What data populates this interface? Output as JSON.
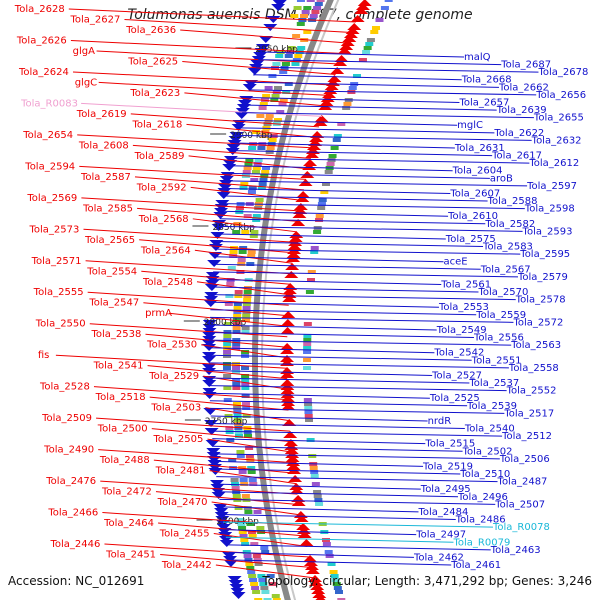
{
  "title": "Tolumonas auensis DSM 9187, complete genome",
  "accession": "Accession: NC_012691",
  "summary": "Topology: circular; Length: 3,471,292 bp; Genes: 3,246",
  "colors": {
    "reverse_strand": "#ee0000",
    "forward_strand": "#1111cc",
    "rna": "#1ab8d8",
    "rna_light": "#f0a0d0",
    "backbone": "#888888"
  },
  "ticks": [
    "2950 kbp",
    "2900 kbp",
    "2850 kbp",
    "2800 kbp",
    "2750 kbp",
    "2700 kbp"
  ],
  "left_labels": [
    {
      "text": "Tola_2628",
      "color": "red"
    },
    {
      "text": "Tola_2627",
      "color": "red"
    },
    {
      "text": "Tola_2636",
      "color": "red"
    },
    {
      "text": "Tola_2626",
      "color": "red"
    },
    {
      "text": "glgA",
      "color": "red"
    },
    {
      "text": "Tola_2625",
      "color": "red"
    },
    {
      "text": "Tola_2624",
      "color": "red"
    },
    {
      "text": "glgC",
      "color": "red"
    },
    {
      "text": "Tola_2623",
      "color": "red"
    },
    {
      "text": "Tola_R0083",
      "color": "pink"
    },
    {
      "text": "Tola_2619",
      "color": "red"
    },
    {
      "text": "Tola_2618",
      "color": "red"
    },
    {
      "text": "Tola_2654",
      "color": "red"
    },
    {
      "text": "Tola_2608",
      "color": "red"
    },
    {
      "text": "Tola_2589",
      "color": "red"
    },
    {
      "text": "Tola_2594",
      "color": "red"
    },
    {
      "text": "Tola_2587",
      "color": "red"
    },
    {
      "text": "Tola_2592",
      "color": "red"
    },
    {
      "text": "Tola_2569",
      "color": "red"
    },
    {
      "text": "Tola_2585",
      "color": "red"
    },
    {
      "text": "Tola_2568",
      "color": "red"
    },
    {
      "text": "Tola_2573",
      "color": "red"
    },
    {
      "text": "Tola_2565",
      "color": "red"
    },
    {
      "text": "Tola_2564",
      "color": "red"
    },
    {
      "text": "Tola_2571",
      "color": "red"
    },
    {
      "text": "Tola_2554",
      "color": "red"
    },
    {
      "text": "Tola_2548",
      "color": "red"
    },
    {
      "text": "Tola_2555",
      "color": "red"
    },
    {
      "text": "Tola_2547",
      "color": "red"
    },
    {
      "text": "prmA",
      "color": "red"
    },
    {
      "text": "Tola_2550",
      "color": "red"
    },
    {
      "text": "Tola_2538",
      "color": "red"
    },
    {
      "text": "Tola_2530",
      "color": "red"
    },
    {
      "text": "fis",
      "color": "red"
    },
    {
      "text": "Tola_2541",
      "color": "red"
    },
    {
      "text": "Tola_2529",
      "color": "red"
    },
    {
      "text": "Tola_2528",
      "color": "red"
    },
    {
      "text": "Tola_2518",
      "color": "red"
    },
    {
      "text": "Tola_2503",
      "color": "red"
    },
    {
      "text": "Tola_2509",
      "color": "red"
    },
    {
      "text": "Tola_2500",
      "color": "red"
    },
    {
      "text": "Tola_2505",
      "color": "red"
    },
    {
      "text": "Tola_2490",
      "color": "red"
    },
    {
      "text": "Tola_2488",
      "color": "red"
    },
    {
      "text": "Tola_2481",
      "color": "red"
    },
    {
      "text": "Tola_2476",
      "color": "red"
    },
    {
      "text": "Tola_2472",
      "color": "red"
    },
    {
      "text": "Tola_2470",
      "color": "red"
    },
    {
      "text": "Tola_2466",
      "color": "red"
    },
    {
      "text": "Tola_2464",
      "color": "red"
    },
    {
      "text": "Tola_2455",
      "color": "red"
    },
    {
      "text": "Tola_2446",
      "color": "red"
    },
    {
      "text": "Tola_2451",
      "color": "red"
    },
    {
      "text": "Tola_2442",
      "color": "red"
    }
  ],
  "right_labels": [
    {
      "text": "malQ",
      "color": "blue"
    },
    {
      "text": "Tola_2687",
      "color": "blue"
    },
    {
      "text": "Tola_2678",
      "color": "blue"
    },
    {
      "text": "Tola_2668",
      "color": "blue"
    },
    {
      "text": "Tola_2662",
      "color": "blue"
    },
    {
      "text": "Tola_2656",
      "color": "blue"
    },
    {
      "text": "Tola_2657",
      "color": "blue"
    },
    {
      "text": "Tola_2639",
      "color": "blue"
    },
    {
      "text": "Tola_2655",
      "color": "blue"
    },
    {
      "text": "mglC",
      "color": "blue"
    },
    {
      "text": "Tola_2622",
      "color": "blue"
    },
    {
      "text": "Tola_2632",
      "color": "blue"
    },
    {
      "text": "Tola_2631",
      "color": "blue"
    },
    {
      "text": "Tola_2617",
      "color": "blue"
    },
    {
      "text": "Tola_2612",
      "color": "blue"
    },
    {
      "text": "Tola_2604",
      "color": "blue"
    },
    {
      "text": "aroB",
      "color": "blue"
    },
    {
      "text": "Tola_2597",
      "color": "blue"
    },
    {
      "text": "Tola_2607",
      "color": "blue"
    },
    {
      "text": "Tola_2588",
      "color": "blue"
    },
    {
      "text": "Tola_2598",
      "color": "blue"
    },
    {
      "text": "Tola_2610",
      "color": "blue"
    },
    {
      "text": "Tola_2582",
      "color": "blue"
    },
    {
      "text": "Tola_2593",
      "color": "blue"
    },
    {
      "text": "Tola_2575",
      "color": "blue"
    },
    {
      "text": "Tola_2583",
      "color": "blue"
    },
    {
      "text": "Tola_2595",
      "color": "blue"
    },
    {
      "text": "aceE",
      "color": "blue"
    },
    {
      "text": "Tola_2567",
      "color": "blue"
    },
    {
      "text": "Tola_2579",
      "color": "blue"
    },
    {
      "text": "Tola_2561",
      "color": "blue"
    },
    {
      "text": "Tola_2570",
      "color": "blue"
    },
    {
      "text": "Tola_2578",
      "color": "blue"
    },
    {
      "text": "Tola_2553",
      "color": "blue"
    },
    {
      "text": "Tola_2559",
      "color": "blue"
    },
    {
      "text": "Tola_2572",
      "color": "blue"
    },
    {
      "text": "Tola_2549",
      "color": "blue"
    },
    {
      "text": "Tola_2556",
      "color": "blue"
    },
    {
      "text": "Tola_2563",
      "color": "blue"
    },
    {
      "text": "Tola_2542",
      "color": "blue"
    },
    {
      "text": "Tola_2551",
      "color": "blue"
    },
    {
      "text": "Tola_2558",
      "color": "blue"
    },
    {
      "text": "Tola_2527",
      "color": "blue"
    },
    {
      "text": "Tola_2537",
      "color": "blue"
    },
    {
      "text": "Tola_2552",
      "color": "blue"
    },
    {
      "text": "Tola_2525",
      "color": "blue"
    },
    {
      "text": "Tola_2539",
      "color": "blue"
    },
    {
      "text": "Tola_2517",
      "color": "blue"
    },
    {
      "text": "nrdR",
      "color": "blue"
    },
    {
      "text": "Tola_2540",
      "color": "blue"
    },
    {
      "text": "Tola_2512",
      "color": "blue"
    },
    {
      "text": "Tola_2515",
      "color": "blue"
    },
    {
      "text": "Tola_2502",
      "color": "blue"
    },
    {
      "text": "Tola_2506",
      "color": "blue"
    },
    {
      "text": "Tola_2519",
      "color": "blue"
    },
    {
      "text": "Tola_2510",
      "color": "blue"
    },
    {
      "text": "Tola_2487",
      "color": "blue"
    },
    {
      "text": "Tola_2495",
      "color": "blue"
    },
    {
      "text": "Tola_2496",
      "color": "blue"
    },
    {
      "text": "Tola_2507",
      "color": "blue"
    },
    {
      "text": "Tola_2484",
      "color": "blue"
    },
    {
      "text": "Tola_2486",
      "color": "blue"
    },
    {
      "text": "Tola_R0078",
      "color": "cyan"
    },
    {
      "text": "Tola_2497",
      "color": "blue"
    },
    {
      "text": "Tola_R0079",
      "color": "cyan"
    },
    {
      "text": "Tola_2463",
      "color": "blue"
    },
    {
      "text": "Tola_2462",
      "color": "blue"
    },
    {
      "text": "Tola_2461",
      "color": "blue"
    }
  ]
}
